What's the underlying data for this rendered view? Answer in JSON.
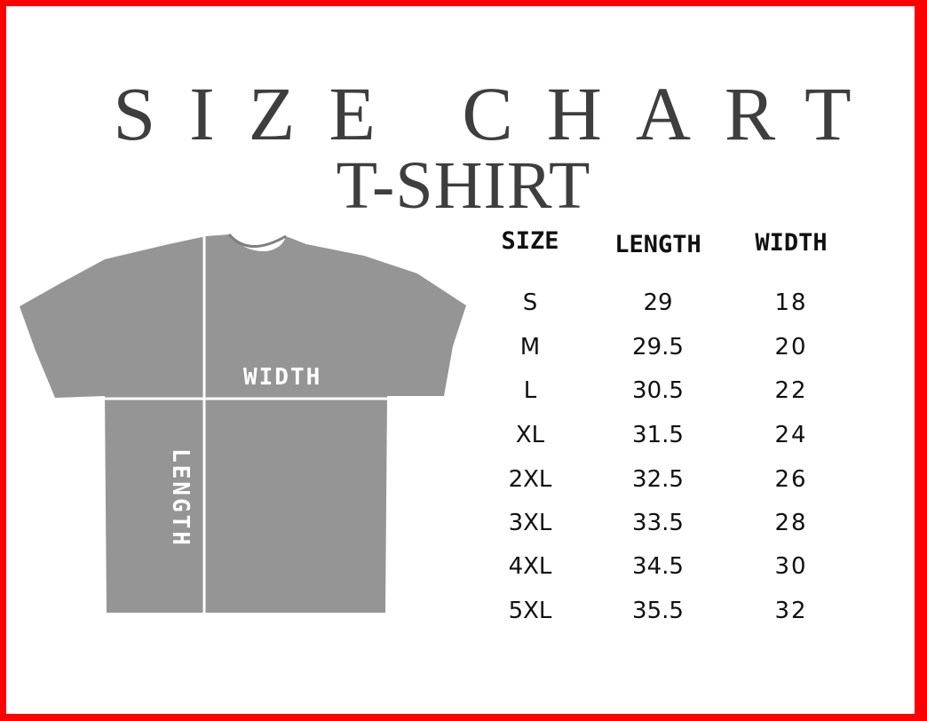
{
  "title": "SIZE CHART",
  "subtitle": "T-SHIRT",
  "shirt": {
    "color": "#959595",
    "width_label": "WIDTH",
    "length_label": "LENGTH"
  },
  "table": {
    "headers": [
      "SIZE",
      "LENGTH",
      "WIDTH"
    ],
    "rows": [
      [
        "S",
        "29",
        "18"
      ],
      [
        "M",
        "29.5",
        "20"
      ],
      [
        "L",
        "30.5",
        "22"
      ],
      [
        "XL",
        "31.5",
        "24"
      ],
      [
        "2XL",
        "32.5",
        "26"
      ],
      [
        "3XL",
        "33.5",
        "28"
      ],
      [
        "4XL",
        "34.5",
        "30"
      ],
      [
        "5XL",
        "35.5",
        "32"
      ]
    ]
  },
  "border_color": "#ff0000"
}
